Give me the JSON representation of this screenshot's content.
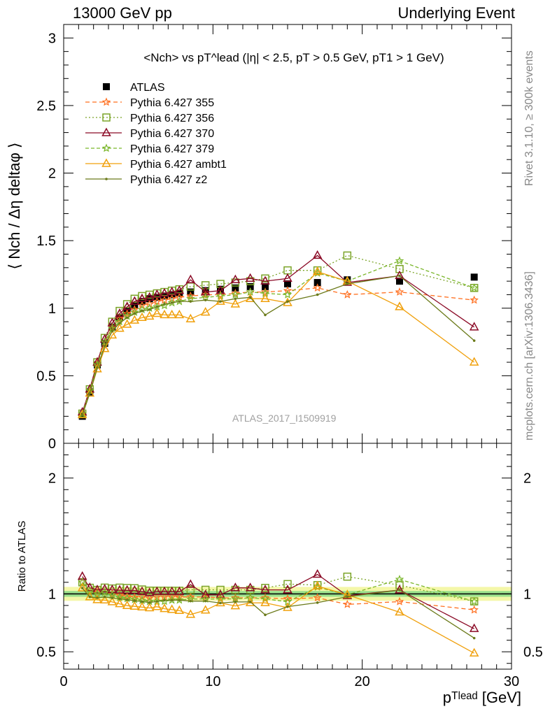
{
  "header": {
    "left": "13000 GeV pp",
    "right": "Underlying Event"
  },
  "side_labels": {
    "rivet": "Rivet 3.1.10, ≥ 300k events",
    "mcplots": "mcplots.cern.ch [arXiv:1306.3436]"
  },
  "watermark": "ATLAS_2017_I1509919",
  "chart_data": {
    "type": "scatter",
    "title": "<Nch> vs pT^lead (|η| < 2.5, pT > 0.5 GeV, pT1 > 1 GeV)",
    "xlabel": "pT^lead [GeV]",
    "ylabel": "⟨ Nch / Δη deltaφ ⟩",
    "ratio_ylabel": "Ratio to ATLAS",
    "xlim": [
      0,
      30
    ],
    "ylim": [
      0,
      3.1
    ],
    "ratio_ylim": [
      0.35,
      2.3
    ],
    "xticks": [
      "0",
      "10",
      "20",
      "30"
    ],
    "yticks": [
      "0",
      "0.5",
      "1",
      "1.5",
      "2",
      "2.5",
      "3"
    ],
    "ratio_yticks": [
      "0.5",
      "1",
      "2"
    ],
    "x": [
      1.25,
      1.75,
      2.25,
      2.75,
      3.25,
      3.75,
      4.25,
      4.75,
      5.25,
      5.75,
      6.25,
      6.75,
      7.25,
      7.75,
      8.5,
      9.5,
      10.5,
      11.5,
      12.5,
      13.5,
      15,
      17,
      19,
      22.5,
      27.5
    ],
    "series": [
      {
        "name": "ATLAS",
        "color": "#000000",
        "marker": "square",
        "values": [
          0.2,
          0.38,
          0.58,
          0.74,
          0.86,
          0.93,
          0.98,
          1.02,
          1.05,
          1.07,
          1.08,
          1.09,
          1.1,
          1.11,
          1.12,
          1.13,
          1.14,
          1.15,
          1.16,
          1.16,
          1.18,
          1.19,
          1.21,
          1.2,
          1.23
        ]
      },
      {
        "name": "Pythia 6.427 355",
        "color": "#ff6f1f",
        "marker": "star",
        "dash": "6,4",
        "values": [
          0.22,
          0.39,
          0.59,
          0.75,
          0.86,
          0.92,
          0.96,
          0.99,
          1.02,
          1.03,
          1.05,
          1.06,
          1.07,
          1.08,
          1.09,
          1.1,
          1.1,
          1.11,
          1.12,
          1.12,
          1.13,
          1.15,
          1.1,
          1.12,
          1.06
        ]
      },
      {
        "name": "Pythia 6.427 356",
        "color": "#7ba428",
        "marker": "square-open",
        "dash": "2,3",
        "values": [
          0.22,
          0.4,
          0.6,
          0.78,
          0.9,
          0.98,
          1.03,
          1.07,
          1.09,
          1.1,
          1.11,
          1.12,
          1.13,
          1.14,
          1.16,
          1.17,
          1.18,
          1.19,
          1.2,
          1.22,
          1.28,
          1.28,
          1.39,
          1.29,
          1.15
        ]
      },
      {
        "name": "Pythia 6.427 370",
        "color": "#8b0a26",
        "marker": "triangle-open",
        "values": [
          0.23,
          0.4,
          0.6,
          0.77,
          0.89,
          0.96,
          1.01,
          1.05,
          1.07,
          1.08,
          1.1,
          1.11,
          1.12,
          1.13,
          1.21,
          1.12,
          1.13,
          1.21,
          1.22,
          1.2,
          1.22,
          1.39,
          1.19,
          1.24,
          0.86
        ]
      },
      {
        "name": "Pythia 6.427 379",
        "color": "#7ab62a",
        "marker": "star",
        "dash": "5,3",
        "values": [
          0.22,
          0.39,
          0.58,
          0.75,
          0.85,
          0.9,
          0.94,
          0.97,
          0.99,
          1.0,
          1.01,
          1.02,
          1.04,
          1.05,
          1.07,
          1.08,
          1.09,
          1.1,
          1.12,
          1.11,
          1.1,
          1.26,
          1.2,
          1.35,
          1.15
        ]
      },
      {
        "name": "Pythia 6.427 ambt1",
        "color": "#f0a00c",
        "marker": "triangle-open",
        "values": [
          0.21,
          0.37,
          0.55,
          0.7,
          0.8,
          0.85,
          0.88,
          0.91,
          0.93,
          0.94,
          0.96,
          0.95,
          0.95,
          0.95,
          0.92,
          0.97,
          1.05,
          1.03,
          1.07,
          1.07,
          1.04,
          1.27,
          1.2,
          1.01,
          0.6
        ]
      },
      {
        "name": "Pythia 6.427 z2",
        "color": "#6b7a1a",
        "marker": "dot",
        "values": [
          0.21,
          0.37,
          0.56,
          0.72,
          0.83,
          0.89,
          0.93,
          0.96,
          0.98,
          0.99,
          1.01,
          1.03,
          1.04,
          1.05,
          1.05,
          1.06,
          1.05,
          1.07,
          1.08,
          0.95,
          1.05,
          1.1,
          1.18,
          1.24,
          0.76
        ]
      }
    ]
  }
}
